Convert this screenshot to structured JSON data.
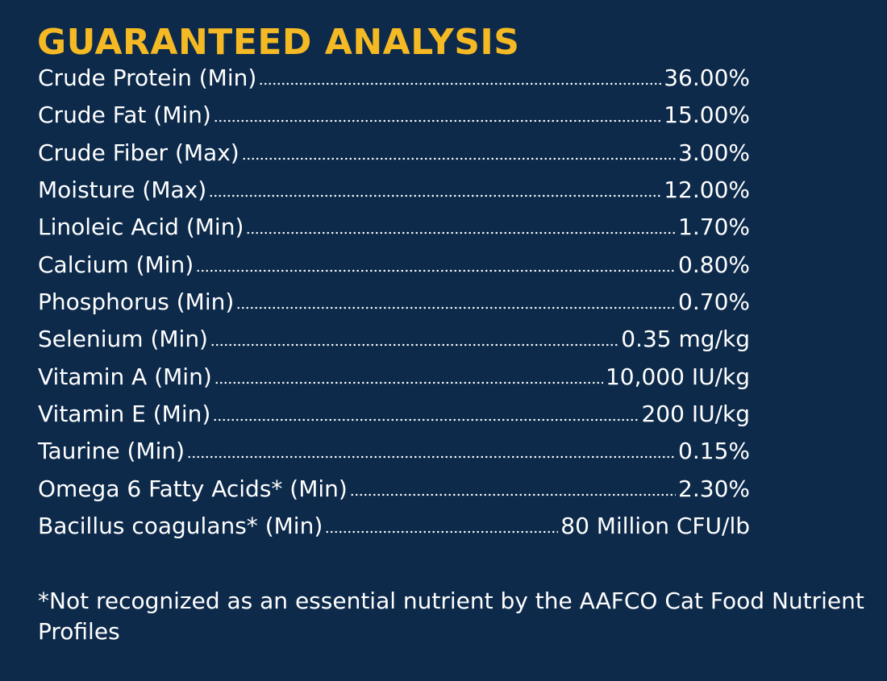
{
  "header": {
    "title": "GUARANTEED ANALYSIS"
  },
  "table": {
    "rows": [
      [
        "Crude Protein (Min)",
        "36.00%"
      ],
      [
        "Crude Fat (Min)",
        "15.00%"
      ],
      [
        "Crude Fiber (Max)",
        "3.00%"
      ],
      [
        "Moisture (Max)",
        "12.00%"
      ],
      [
        "Linoleic Acid (Min)",
        "1.70%"
      ],
      [
        "Calcium (Min)",
        "0.80%"
      ],
      [
        "Phosphorus (Min)",
        "0.70%"
      ],
      [
        "Selenium (Min)",
        "0.35 mg/kg"
      ],
      [
        "Vitamin A (Min)",
        "10,000 IU/kg"
      ],
      [
        "Vitamin E (Min)",
        "200 IU/kg"
      ],
      [
        "Taurine (Min)",
        "0.15%"
      ],
      [
        "Omega 6 Fatty Acids* (Min)",
        "2.30%"
      ],
      [
        "Bacillus coagulans* (Min)",
        "80 Million CFU/lb"
      ]
    ]
  },
  "footnote": "*Not recognized as an essential nutrient by the AAFCO Cat Food Nutrient Profiles"
}
